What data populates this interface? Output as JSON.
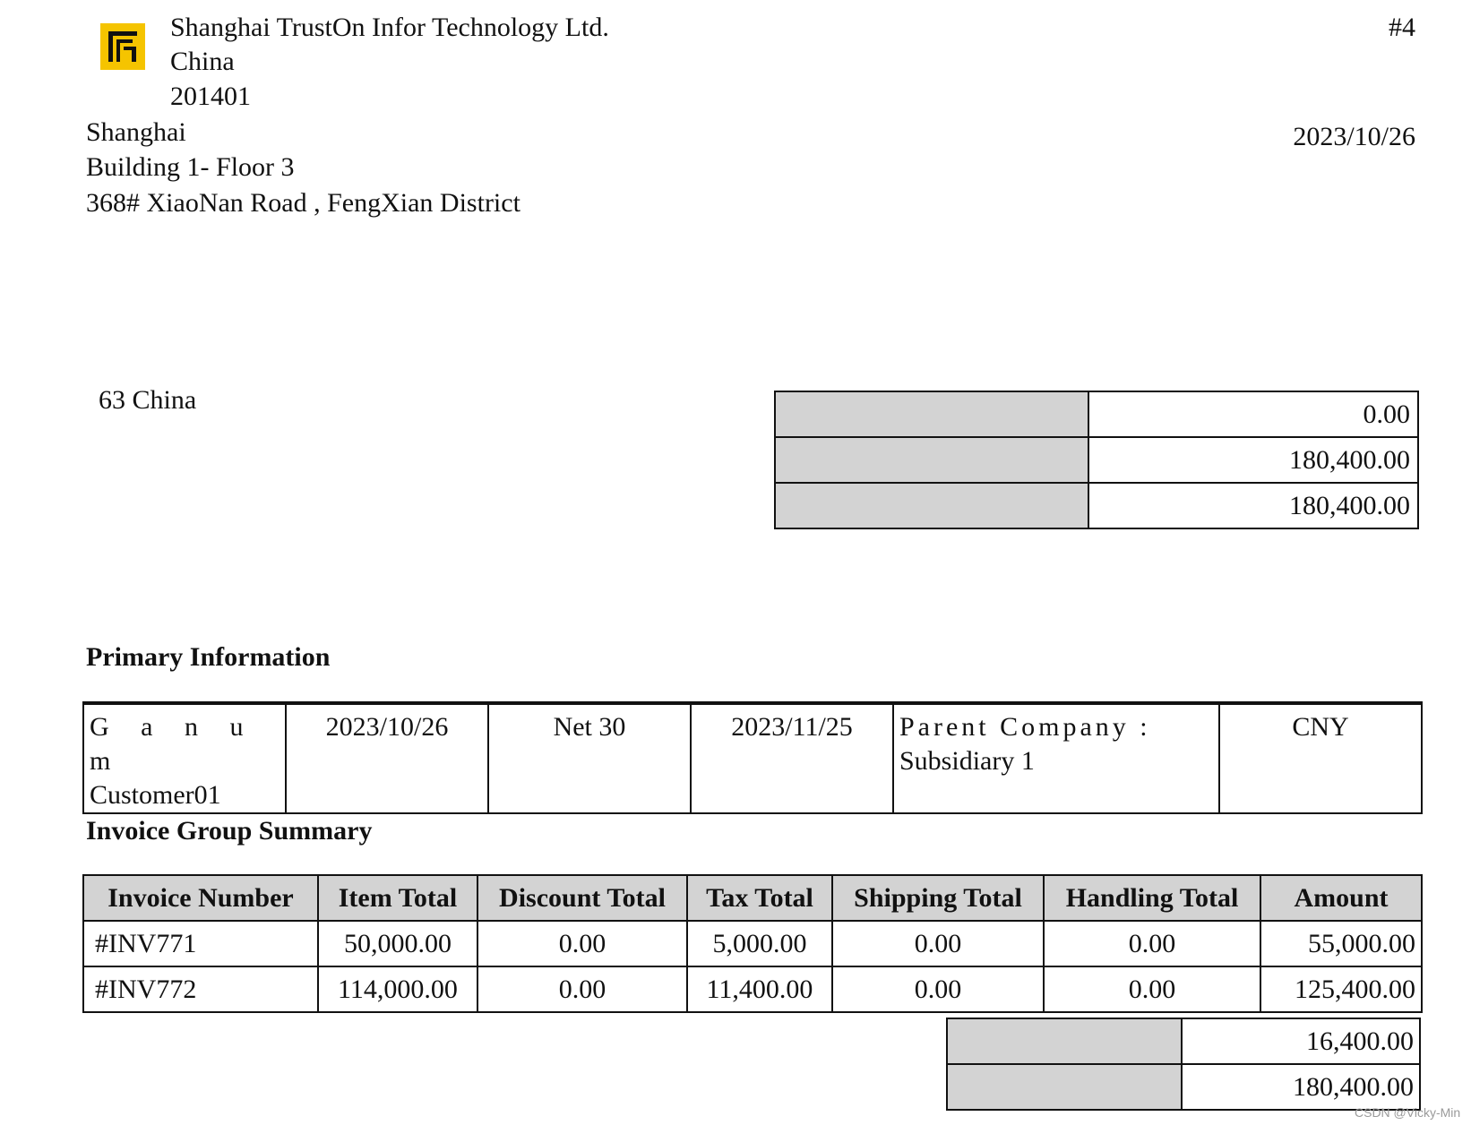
{
  "header": {
    "company_name": "Shanghai TrustOn Infor Technology Ltd.",
    "company_country": "China",
    "company_postcode": "201401",
    "city": "Shanghai",
    "address_line1": "Building 1- Floor 3",
    "address_line2": "368# XiaoNan Road , FengXian District",
    "invoice_no": "#4",
    "date": "2023/10/26",
    "logo_color": "#f5c400"
  },
  "billto": {
    "text": "63 China"
  },
  "totals": [
    {
      "label": "",
      "value": "0.00"
    },
    {
      "label": "",
      "value": "180,400.00"
    },
    {
      "label": "",
      "value": "180,400.00"
    }
  ],
  "primary": {
    "heading": "Primary Information",
    "customer_line1": "G a n u m",
    "customer_line2": "Customer01",
    "date": "2023/10/26",
    "terms": "Net 30",
    "due_date": "2023/11/25",
    "subsidiary_line1": "Parent Company :",
    "subsidiary_line2": "Subsidiary 1",
    "currency": "CNY"
  },
  "summary": {
    "heading": "Invoice Group Summary",
    "columns": [
      "Invoice Number",
      "Item Total",
      "Discount Total",
      "Tax Total",
      "Shipping Total",
      "Handling Total",
      "Amount"
    ],
    "rows": [
      [
        "#INV771",
        "50,000.00",
        "0.00",
        "5,000.00",
        "0.00",
        "0.00",
        "55,000.00"
      ],
      [
        "#INV772",
        "114,000.00",
        "0.00",
        "11,400.00",
        "0.00",
        "0.00",
        "125,400.00"
      ]
    ],
    "totals": [
      {
        "label": "",
        "value": "16,400.00"
      },
      {
        "label": "",
        "value": "180,400.00"
      }
    ]
  },
  "watermark": "CSDN @Vicky-Min"
}
